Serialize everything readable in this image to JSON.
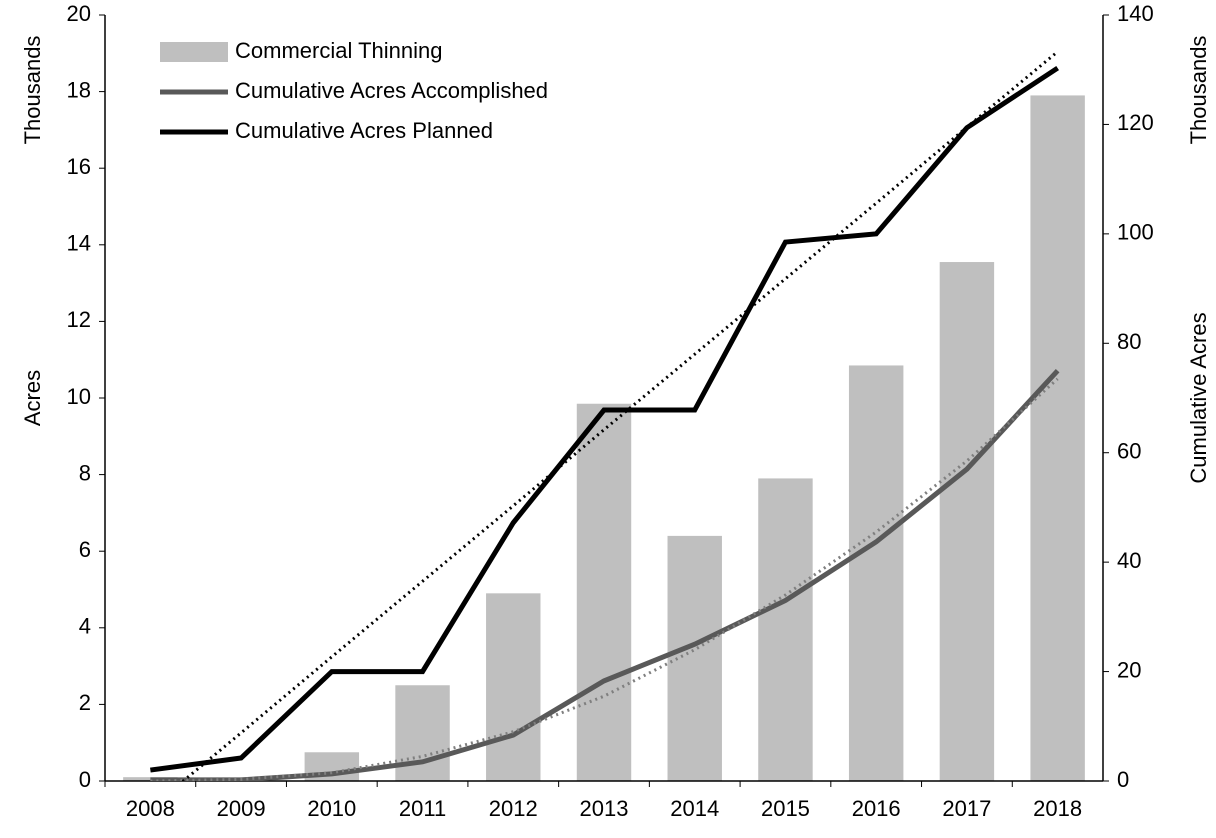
{
  "chart_data": {
    "type": "bar-line",
    "categories": [
      "2008",
      "2009",
      "2010",
      "2011",
      "2012",
      "2013",
      "2014",
      "2015",
      "2016",
      "2017",
      "2018"
    ],
    "y_label": "Acres",
    "y_unit": "Thousands",
    "y2_label": "Cumulative Acres",
    "y2_unit": "Thousands",
    "ylim": [
      0,
      20
    ],
    "yticks": [
      0,
      2,
      4,
      6,
      8,
      10,
      12,
      14,
      16,
      18,
      20
    ],
    "y2lim": [
      0,
      140
    ],
    "y2ticks": [
      0,
      20,
      40,
      60,
      80,
      100,
      120,
      140
    ],
    "legend": "upper left",
    "series": [
      {
        "name": "Commercial Thinning",
        "kind": "bar",
        "color": "#bfbfbf",
        "values": [
          0.1,
          0,
          0.75,
          2.5,
          4.9,
          9.85,
          6.4,
          7.9,
          10.85,
          13.55,
          17.9
        ]
      },
      {
        "name": "Cumulative Acres Accomplished",
        "kind": "line",
        "axis": "y2",
        "color": "#595959",
        "values": [
          0.2,
          0.2,
          1.3,
          3.5,
          8.4,
          18.3,
          25,
          33,
          43.7,
          57,
          75
        ]
      },
      {
        "name": "Cumulative Acres Planned",
        "kind": "line",
        "axis": "y2",
        "color": "#000000",
        "values": [
          2,
          4.2,
          20,
          20,
          47.2,
          67.8,
          67.8,
          98.5,
          100,
          119.4,
          130.3
        ]
      },
      {
        "kind": "trend",
        "axis": "y2",
        "color": "#7f7f7f",
        "values": [
          0,
          0.3,
          1.5,
          4.5,
          9,
          15.5,
          24,
          34,
          45.5,
          58.5,
          73.5
        ]
      },
      {
        "kind": "trend",
        "axis": "y2",
        "color": "#000000",
        "values": [
          -5,
          8.8,
          22.7,
          36.5,
          50.3,
          64.2,
          78,
          91.8,
          105.6,
          119.5,
          133.3
        ]
      }
    ]
  }
}
